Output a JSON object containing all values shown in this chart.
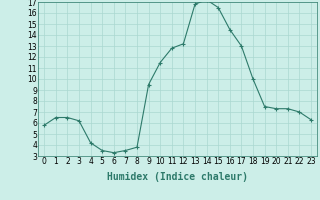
{
  "x": [
    0,
    1,
    2,
    3,
    4,
    5,
    6,
    7,
    8,
    9,
    10,
    11,
    12,
    13,
    14,
    15,
    16,
    17,
    18,
    19,
    20,
    21,
    22,
    23
  ],
  "y": [
    5.8,
    6.5,
    6.5,
    6.2,
    4.2,
    3.5,
    3.3,
    3.5,
    3.8,
    9.5,
    11.5,
    12.8,
    13.2,
    16.8,
    17.2,
    16.5,
    14.5,
    13.0,
    10.0,
    7.5,
    7.3,
    7.3,
    7.0,
    6.3
  ],
  "xlabel": "Humidex (Indice chaleur)",
  "xlim_min": -0.5,
  "xlim_max": 23.5,
  "ylim_min": 3,
  "ylim_max": 17,
  "yticks": [
    3,
    4,
    5,
    6,
    7,
    8,
    9,
    10,
    11,
    12,
    13,
    14,
    15,
    16,
    17
  ],
  "xticks": [
    0,
    1,
    2,
    3,
    4,
    5,
    6,
    7,
    8,
    9,
    10,
    11,
    12,
    13,
    14,
    15,
    16,
    17,
    18,
    19,
    20,
    21,
    22,
    23
  ],
  "line_color": "#2d7a6a",
  "marker": "+",
  "markersize": 3,
  "linewidth": 0.8,
  "bg_color": "#cceee8",
  "grid_color": "#aad8d0",
  "xlabel_fontsize": 7,
  "tick_fontsize": 5.5
}
